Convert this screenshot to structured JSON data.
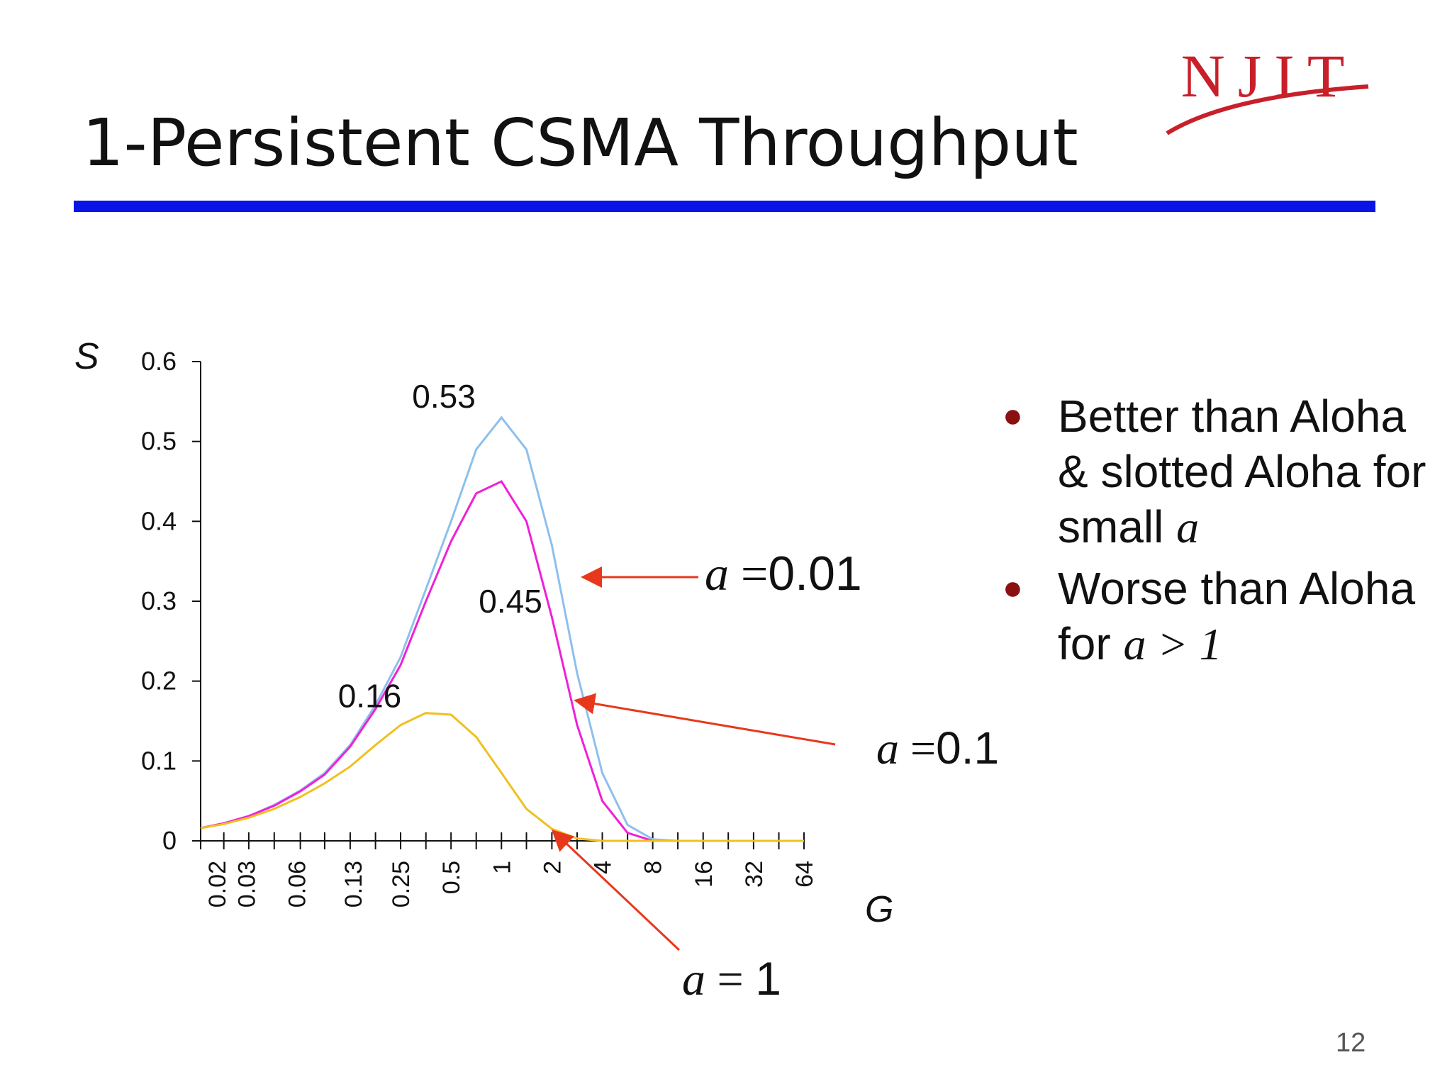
{
  "slide": {
    "title": "1-Persistent CSMA Throughput",
    "page_number": "12",
    "logo_text": "NJIT",
    "colors": {
      "rule": "#0a14e6",
      "logo": "#c8202a",
      "bullet": "#8b1010"
    }
  },
  "annotations": {
    "a001": {
      "var": "a",
      "eq": " =",
      "num": "0.01"
    },
    "a01": {
      "var": "a",
      "eq": " =",
      "num": "0.1"
    },
    "a1": {
      "var": "a",
      "eq": " = ",
      "num": "1"
    }
  },
  "bullets": [
    {
      "text": "Better than Aloha & slotted Aloha for small ",
      "ital": "a"
    },
    {
      "text": "Worse than Aloha for ",
      "ital": "a > 1"
    }
  ],
  "chart_data": {
    "type": "line",
    "xlabel": "G",
    "ylabel": "S",
    "ylim": [
      0,
      0.6
    ],
    "yticks": [
      "0",
      "0.1",
      "0.2",
      "0.3",
      "0.4",
      "0.5",
      "0.6"
    ],
    "x_tick_labels": [
      "0.02",
      "0.03",
      "0.06",
      "0.13",
      "0.25",
      "0.5",
      "1",
      "2",
      "4",
      "8",
      "16",
      "32",
      "64"
    ],
    "x": [
      0.016,
      0.022,
      0.031,
      0.044,
      0.063,
      0.088,
      0.125,
      0.177,
      0.25,
      0.354,
      0.5,
      0.707,
      1,
      1.41,
      2,
      2.83,
      4,
      5.66,
      8,
      11.3,
      16,
      22.6,
      32,
      45.3,
      64
    ],
    "series": [
      {
        "color": "#8ec0ec",
        "values": [
          0.016,
          0.022,
          0.031,
          0.045,
          0.063,
          0.085,
          0.12,
          0.17,
          0.23,
          0.315,
          0.4,
          0.49,
          0.53,
          0.49,
          0.37,
          0.21,
          0.085,
          0.02,
          0.002,
          0,
          0,
          0,
          0,
          0,
          0
        ]
      },
      {
        "color": "#f020d8",
        "values": [
          0.016,
          0.022,
          0.031,
          0.044,
          0.062,
          0.083,
          0.118,
          0.165,
          0.22,
          0.3,
          0.375,
          0.435,
          0.45,
          0.4,
          0.28,
          0.145,
          0.05,
          0.01,
          0,
          0,
          0,
          0,
          0,
          0,
          0
        ]
      },
      {
        "color": "#f0c020",
        "values": [
          0.016,
          0.021,
          0.029,
          0.04,
          0.055,
          0.072,
          0.093,
          0.12,
          0.145,
          0.16,
          0.158,
          0.13,
          0.085,
          0.04,
          0.015,
          0.003,
          0,
          0,
          0,
          0,
          0,
          0,
          0,
          0,
          0
        ]
      }
    ],
    "data_labels": [
      {
        "text": "0.53",
        "x": 1,
        "y": 0.53
      },
      {
        "text": "0.45",
        "x": 1,
        "y": 0.45
      },
      {
        "text": "0.16",
        "x": 0.354,
        "y": 0.16
      }
    ]
  }
}
